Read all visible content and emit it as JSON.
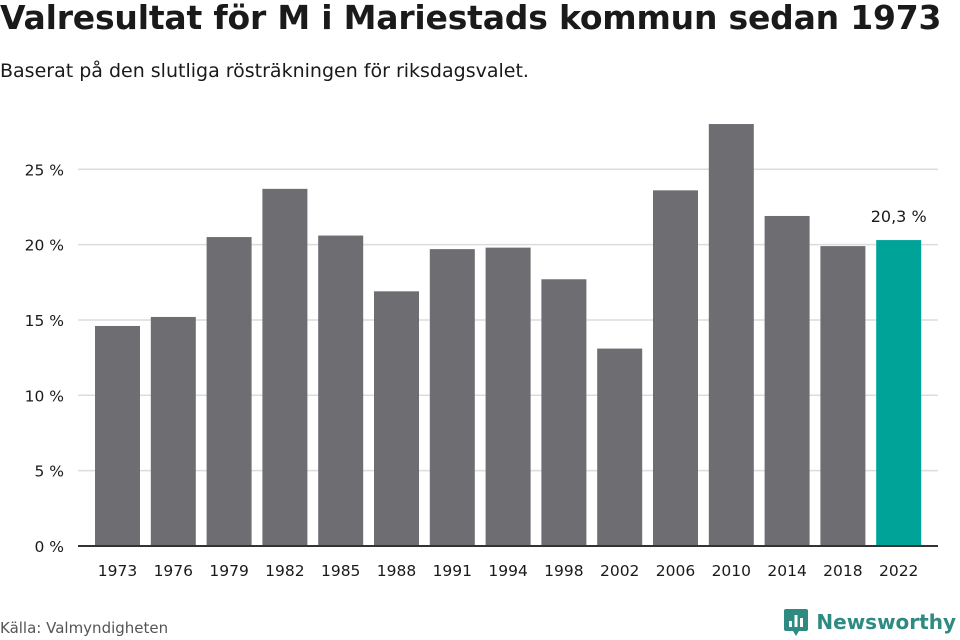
{
  "header": {
    "title": "Valresultat för M i Mariestads kommun sedan 1973",
    "subtitle": "Baserat på den slutliga rösträkningen för riksdagsvalet."
  },
  "footer": {
    "source": "Källa: Valmyndigheten",
    "brand": "Newsworthy",
    "brand_icon": "newsworthy-logo-icon"
  },
  "colors": {
    "bar": "#6e6d72",
    "highlight": "#00a397",
    "grid": "#dcdcdc",
    "axis": "#333333",
    "text": "#1a1a1a",
    "brand": "#2d8b82"
  },
  "chart_data": {
    "type": "bar",
    "categories": [
      "1973",
      "1976",
      "1979",
      "1982",
      "1985",
      "1988",
      "1991",
      "1994",
      "1998",
      "2002",
      "2006",
      "2010",
      "2014",
      "2018",
      "2022"
    ],
    "values": [
      14.6,
      15.2,
      20.5,
      23.7,
      20.6,
      16.9,
      19.7,
      19.8,
      17.7,
      13.1,
      23.6,
      28.0,
      21.9,
      19.9,
      20.3
    ],
    "highlight_index": 14,
    "data_labels": [
      {
        "index": 14,
        "text": "20,3 %"
      }
    ],
    "yticks": [
      0,
      5,
      10,
      15,
      20,
      25
    ],
    "ytick_labels": [
      "0 %",
      "5 %",
      "10 %",
      "15 %",
      "20 %",
      "25 %"
    ],
    "ylim": [
      0,
      28.6
    ],
    "grid": true,
    "title": "Valresultat för M i Mariestads kommun sedan 1973",
    "xlabel": "",
    "ylabel": ""
  }
}
